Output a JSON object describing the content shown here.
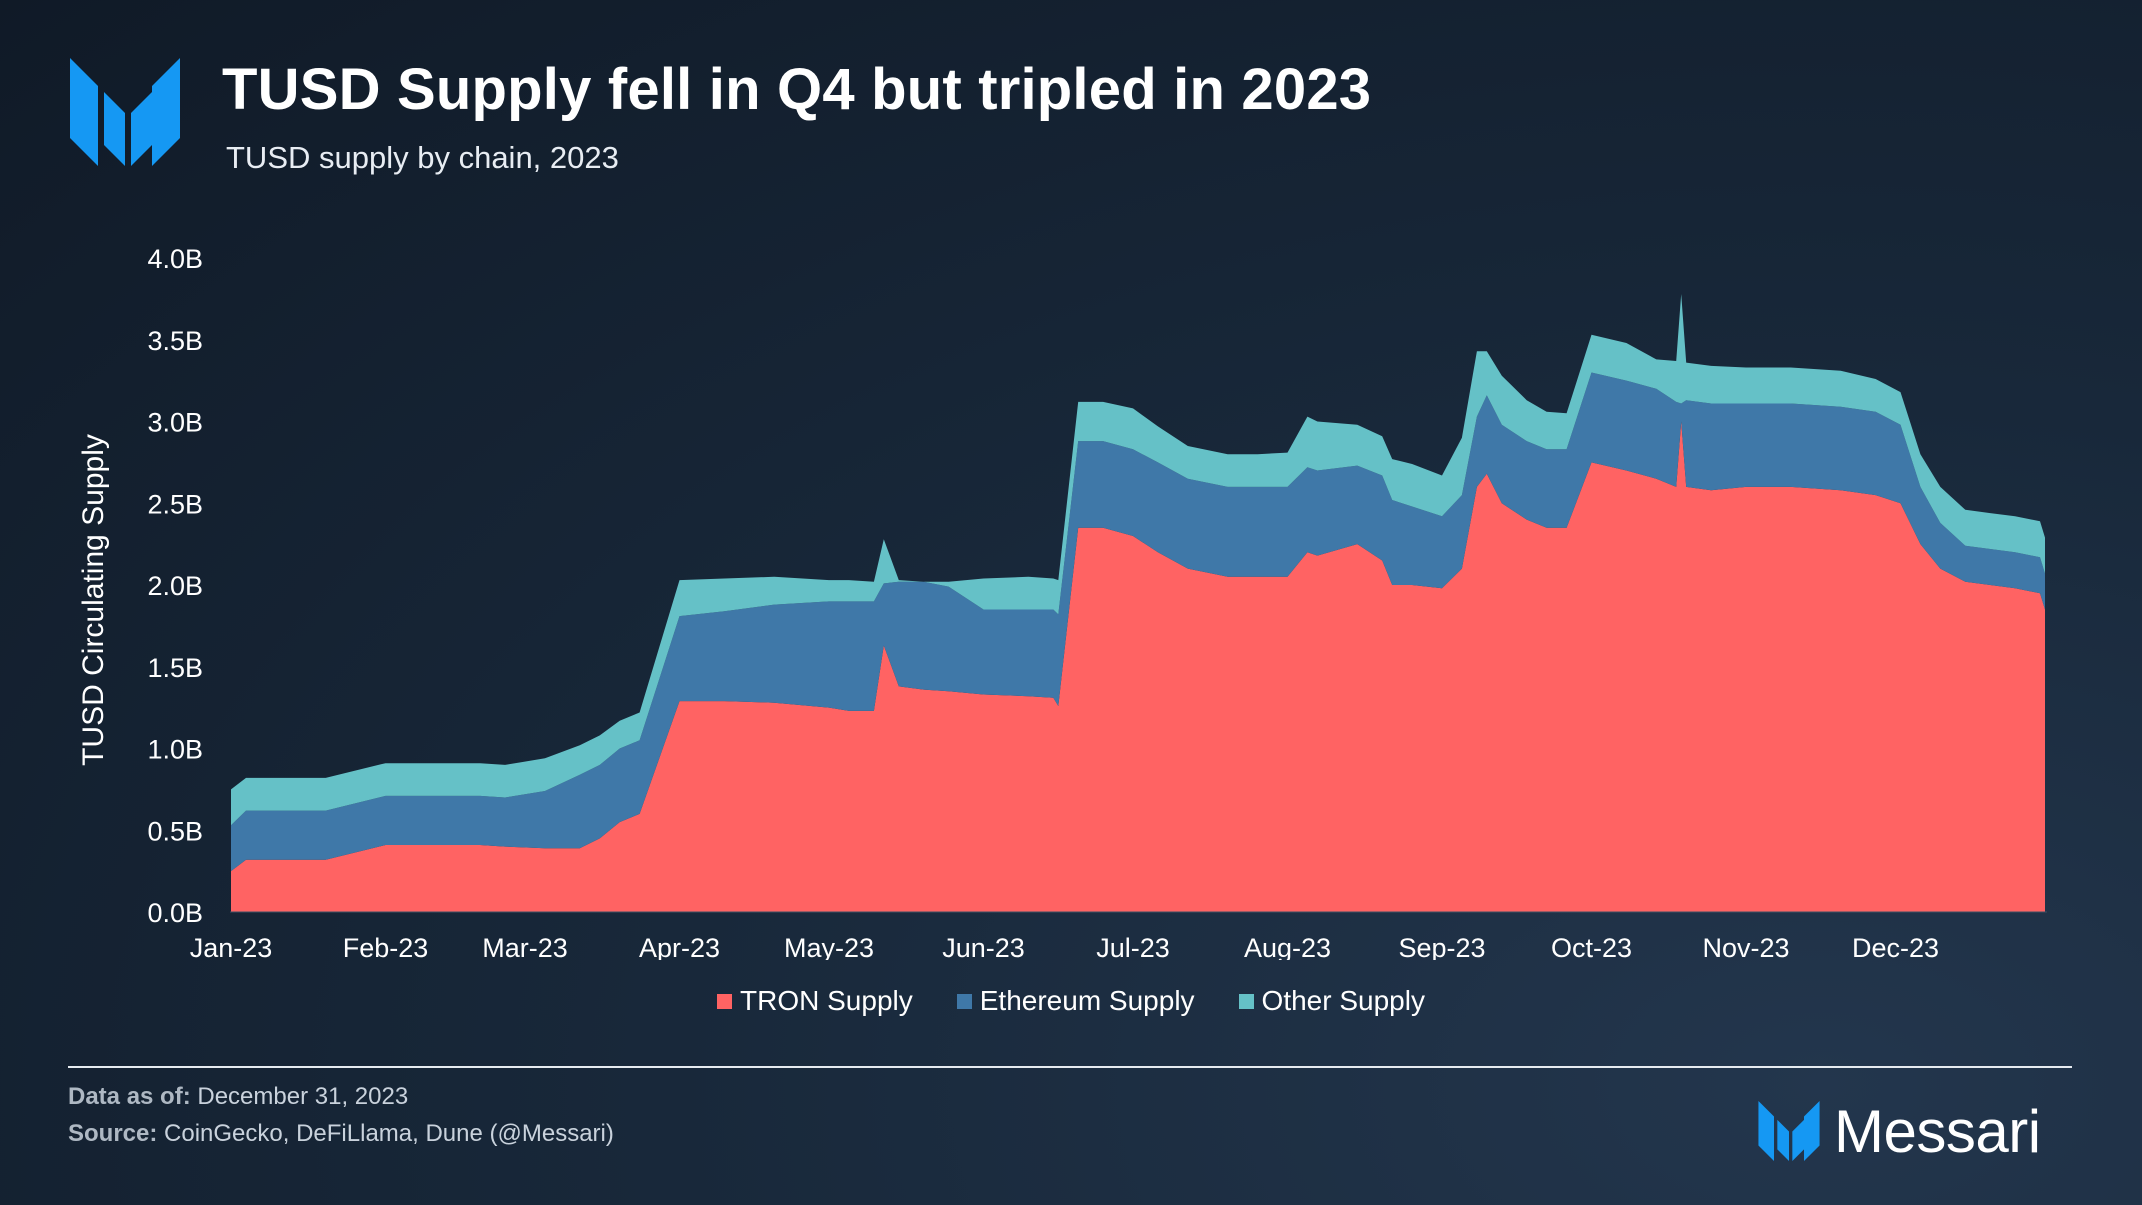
{
  "header": {
    "title": "TUSD Supply fell in Q4 but tripled in 2023",
    "subtitle": "TUSD supply by chain, 2023"
  },
  "footer": {
    "data_as_of_label": "Data as of:",
    "data_as_of_value": "December 31, 2023",
    "source_label": "Source:",
    "source_value": "CoinGecko, DeFiLlama, Dune (@Messari)"
  },
  "brand": {
    "name": "Messari"
  },
  "colors": {
    "tron": "#ff6363",
    "ethereum": "#3f78a8",
    "other": "#65c1c7",
    "text": "#ffffff",
    "accent": "#1598f3"
  },
  "chart_data": {
    "type": "area",
    "stacked": true,
    "ylabel": "TUSD Circulating Supply",
    "xlabel": "",
    "ylim": [
      0,
      4.0
    ],
    "y_ticks": [
      "0.0B",
      "0.5B",
      "1.0B",
      "1.5B",
      "2.0B",
      "2.5B",
      "3.0B",
      "3.5B",
      "4.0B"
    ],
    "x_ticks": [
      "Jan-23",
      "Feb-23",
      "Mar-23",
      "Apr-23",
      "May-23",
      "Jun-23",
      "Jul-23",
      "Aug-23",
      "Sep-23",
      "Oct-23",
      "Nov-23",
      "Dec-23"
    ],
    "grid": false,
    "legend_position": "bottom-center",
    "x": [
      "2023-01-01",
      "2023-01-04",
      "2023-01-15",
      "2023-01-20",
      "2023-02-01",
      "2023-02-10",
      "2023-02-20",
      "2023-02-25",
      "2023-03-05",
      "2023-03-12",
      "2023-03-16",
      "2023-03-20",
      "2023-03-24",
      "2023-04-01",
      "2023-04-10",
      "2023-04-20",
      "2023-05-01",
      "2023-05-05",
      "2023-05-10",
      "2023-05-12",
      "2023-05-15",
      "2023-05-20",
      "2023-05-25",
      "2023-06-01",
      "2023-06-10",
      "2023-06-15",
      "2023-06-16",
      "2023-06-20",
      "2023-06-25",
      "2023-07-01",
      "2023-07-06",
      "2023-07-12",
      "2023-07-20",
      "2023-07-26",
      "2023-08-01",
      "2023-08-05",
      "2023-08-07",
      "2023-08-15",
      "2023-08-20",
      "2023-08-22",
      "2023-08-26",
      "2023-09-01",
      "2023-09-05",
      "2023-09-08",
      "2023-09-10",
      "2023-09-13",
      "2023-09-18",
      "2023-09-22",
      "2023-09-26",
      "2023-10-01",
      "2023-10-08",
      "2023-10-14",
      "2023-10-18",
      "2023-10-19",
      "2023-10-20",
      "2023-10-25",
      "2023-11-01",
      "2023-11-10",
      "2023-11-20",
      "2023-11-27",
      "2023-12-02",
      "2023-12-06",
      "2023-12-10",
      "2023-12-15",
      "2023-12-20",
      "2023-12-25",
      "2023-12-30",
      "2023-12-31"
    ],
    "series": [
      {
        "name": "TRON Supply",
        "values": [
          0.25,
          0.32,
          0.32,
          0.32,
          0.41,
          0.41,
          0.41,
          0.4,
          0.39,
          0.39,
          0.45,
          0.55,
          0.6,
          1.29,
          1.29,
          1.28,
          1.25,
          1.23,
          1.23,
          1.63,
          1.38,
          1.36,
          1.35,
          1.33,
          1.32,
          1.31,
          1.26,
          2.35,
          2.35,
          2.3,
          2.2,
          2.1,
          2.05,
          2.05,
          2.05,
          2.2,
          2.18,
          2.25,
          2.15,
          2.0,
          2.0,
          1.98,
          2.1,
          2.6,
          2.68,
          2.5,
          2.4,
          2.35,
          2.35,
          2.75,
          2.7,
          2.65,
          2.6,
          3.0,
          2.6,
          2.58,
          2.6,
          2.6,
          2.58,
          2.55,
          2.5,
          2.25,
          2.1,
          2.02,
          2.0,
          1.98,
          1.95,
          1.85
        ]
      },
      {
        "name": "Ethereum Supply",
        "values": [
          0.28,
          0.3,
          0.3,
          0.3,
          0.3,
          0.3,
          0.3,
          0.3,
          0.35,
          0.45,
          0.45,
          0.45,
          0.45,
          0.52,
          0.55,
          0.6,
          0.65,
          0.67,
          0.67,
          0.38,
          0.64,
          0.66,
          0.64,
          0.52,
          0.53,
          0.54,
          0.56,
          0.53,
          0.53,
          0.53,
          0.55,
          0.55,
          0.55,
          0.55,
          0.55,
          0.52,
          0.52,
          0.48,
          0.52,
          0.52,
          0.48,
          0.44,
          0.45,
          0.43,
          0.48,
          0.48,
          0.48,
          0.48,
          0.48,
          0.55,
          0.55,
          0.55,
          0.52,
          0.11,
          0.53,
          0.53,
          0.51,
          0.51,
          0.51,
          0.51,
          0.48,
          0.35,
          0.28,
          0.22,
          0.22,
          0.22,
          0.22,
          0.22
        ]
      },
      {
        "name": "Other Supply",
        "values": [
          0.22,
          0.2,
          0.2,
          0.2,
          0.2,
          0.2,
          0.2,
          0.2,
          0.2,
          0.18,
          0.18,
          0.17,
          0.17,
          0.22,
          0.2,
          0.17,
          0.13,
          0.13,
          0.12,
          0.27,
          0.01,
          0.0,
          0.03,
          0.19,
          0.2,
          0.19,
          0.21,
          0.24,
          0.24,
          0.25,
          0.22,
          0.2,
          0.2,
          0.2,
          0.21,
          0.31,
          0.3,
          0.25,
          0.24,
          0.25,
          0.26,
          0.25,
          0.35,
          0.4,
          0.27,
          0.3,
          0.25,
          0.23,
          0.22,
          0.23,
          0.23,
          0.18,
          0.25,
          0.67,
          0.23,
          0.23,
          0.22,
          0.22,
          0.22,
          0.2,
          0.2,
          0.2,
          0.22,
          0.22,
          0.22,
          0.22,
          0.22,
          0.22
        ]
      }
    ]
  }
}
